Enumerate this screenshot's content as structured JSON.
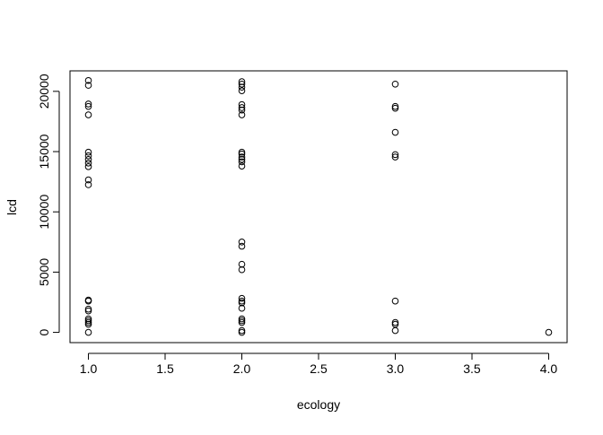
{
  "chart_data": {
    "type": "scatter",
    "x_label": "ecology",
    "y_label": "lcd",
    "x": [
      1,
      1,
      1,
      1,
      1,
      1,
      1,
      1,
      1,
      1,
      1,
      1,
      1,
      1,
      1,
      1,
      1,
      1,
      1,
      1,
      1,
      2,
      2,
      2,
      2,
      2,
      2,
      2,
      2,
      2,
      2,
      2,
      2,
      2,
      2,
      2,
      2,
      2,
      2,
      2,
      2,
      2,
      2,
      2,
      2,
      2,
      2,
      2,
      3,
      3,
      3,
      3,
      3,
      3,
      3,
      3,
      3,
      3,
      4
    ],
    "y": [
      20900,
      20500,
      18950,
      18750,
      18050,
      14950,
      14650,
      14350,
      14050,
      13750,
      12650,
      12250,
      2680,
      2600,
      1930,
      1780,
      1120,
      970,
      820,
      670,
      0,
      20800,
      20600,
      20350,
      20050,
      18900,
      18650,
      18450,
      18050,
      14950,
      14800,
      14550,
      14350,
      14150,
      13800,
      7500,
      7150,
      5650,
      5200,
      2820,
      2600,
      2450,
      2000,
      1120,
      970,
      820,
      150,
      0,
      20600,
      18750,
      18600,
      16600,
      14750,
      14550,
      2600,
      820,
      670,
      150,
      0
    ],
    "color": "#000000",
    "xlim": [
      0.88,
      4.12
    ],
    "ylim": [
      -850,
      21700
    ],
    "xticks": [
      {
        "value": 1,
        "label": "1.0"
      },
      {
        "value": 1.5,
        "label": "1.5"
      },
      {
        "value": 2,
        "label": "2.0"
      },
      {
        "value": 2.5,
        "label": "2.5"
      },
      {
        "value": 3,
        "label": "3.0"
      },
      {
        "value": 3.5,
        "label": "3.5"
      },
      {
        "value": 4,
        "label": "4.0"
      }
    ],
    "yticks": [
      0,
      5000,
      10000,
      15000,
      20000
    ]
  }
}
